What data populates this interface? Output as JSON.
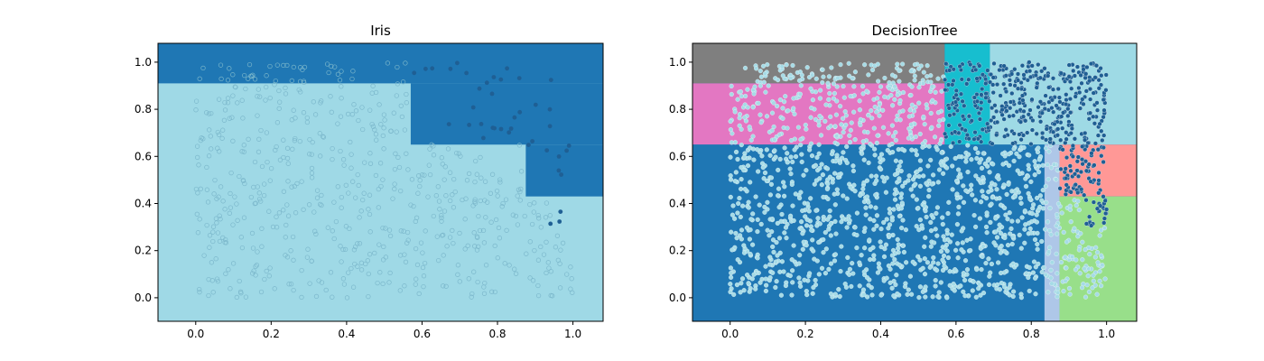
{
  "chart_data": [
    {
      "type": "scatter",
      "title": "Iris",
      "xlim": [
        -0.1,
        1.08
      ],
      "ylim": [
        -0.1,
        1.08
      ],
      "xticks": [
        "0.0",
        "0.2",
        "0.4",
        "0.6",
        "0.8",
        "1.0"
      ],
      "yticks": [
        "0.0",
        "0.2",
        "0.4",
        "0.6",
        "0.8",
        "1.0"
      ],
      "grid": false,
      "background_color": "#9fd9e6",
      "regions": [
        {
          "x0": -0.1,
          "x1": 1.08,
          "y0": 0.91,
          "y1": 1.08,
          "color": "#1f77b4"
        },
        {
          "x0": 0.57,
          "x1": 1.08,
          "y0": 0.65,
          "y1": 0.91,
          "color": "#1f77b4"
        },
        {
          "x0": 0.875,
          "x1": 1.08,
          "y0": 0.43,
          "y1": 0.65,
          "color": "#1f77b4"
        }
      ],
      "series": [
        {
          "color": "#a6dbe6",
          "style": "open-circle",
          "count": 600,
          "region": [
            0.0,
            1.0,
            0.0,
            1.0
          ],
          "rule": "light-class"
        },
        {
          "color": "#1f5f94",
          "style": "dot",
          "count": 40,
          "region": [
            0.57,
            1.0,
            0.3,
            1.0
          ],
          "rule": "dark-class"
        }
      ]
    },
    {
      "type": "scatter",
      "title": "DecisionTree",
      "xlim": [
        -0.1,
        1.08
      ],
      "ylim": [
        -0.1,
        1.08
      ],
      "xticks": [
        "0.0",
        "0.2",
        "0.4",
        "0.6",
        "0.8",
        "1.0"
      ],
      "yticks": [
        "0.0",
        "0.2",
        "0.4",
        "0.6",
        "0.8",
        "1.0"
      ],
      "grid": false,
      "background_color": "#1f77b4",
      "regions": [
        {
          "x0": -0.1,
          "x1": 0.57,
          "y0": 0.91,
          "y1": 1.08,
          "color": "#7f7f7f"
        },
        {
          "x0": -0.1,
          "x1": 0.57,
          "y0": 0.65,
          "y1": 0.91,
          "color": "#e377c2"
        },
        {
          "x0": 0.57,
          "x1": 0.69,
          "y0": 0.65,
          "y1": 1.08,
          "color": "#17becf"
        },
        {
          "x0": 0.69,
          "x1": 1.08,
          "y0": 0.65,
          "y1": 1.08,
          "color": "#9edae5"
        },
        {
          "x0": -0.1,
          "x1": 0.835,
          "y0": -0.1,
          "y1": 0.65,
          "color": "#1f77b4"
        },
        {
          "x0": 0.835,
          "x1": 0.875,
          "y0": -0.1,
          "y1": 0.65,
          "color": "#aec7e8"
        },
        {
          "x0": 0.875,
          "x1": 1.08,
          "y0": 0.43,
          "y1": 0.65,
          "color": "#ff9896"
        },
        {
          "x0": 0.875,
          "x1": 1.08,
          "y0": -0.1,
          "y1": 0.43,
          "color": "#98df8a"
        }
      ],
      "series": [
        {
          "color": "#a6dbe6",
          "style": "filled-circle",
          "count": 1500,
          "region": [
            0.0,
            1.0,
            0.0,
            1.0
          ],
          "rule": "light-class"
        },
        {
          "color": "#1f5f94",
          "style": "filled-circle",
          "count": 520,
          "region": [
            0.57,
            1.0,
            0.0,
            1.0
          ],
          "rule": "dark-class"
        }
      ]
    }
  ]
}
